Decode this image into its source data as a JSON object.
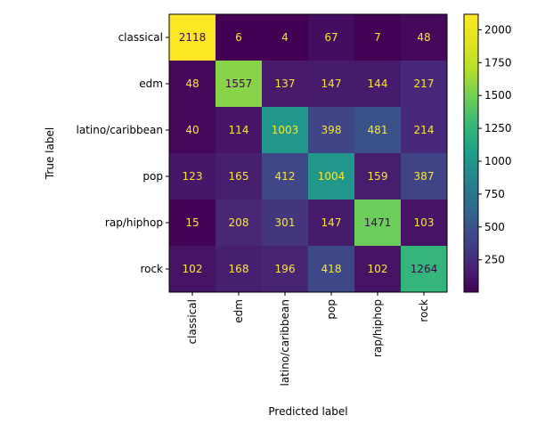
{
  "chart_data": {
    "type": "heatmap",
    "title": "",
    "xlabel": "Predicted label",
    "ylabel": "True label",
    "x_categories": [
      "classical",
      "edm",
      "latino/caribbean",
      "pop",
      "rap/hiphop",
      "rock"
    ],
    "y_categories": [
      "classical",
      "edm",
      "latino/caribbean",
      "pop",
      "rap/hiphop",
      "rock"
    ],
    "matrix": [
      [
        2118,
        6,
        4,
        67,
        7,
        48
      ],
      [
        48,
        1557,
        137,
        147,
        144,
        217
      ],
      [
        40,
        114,
        1003,
        398,
        481,
        214
      ],
      [
        123,
        165,
        412,
        1004,
        159,
        387
      ],
      [
        15,
        208,
        301,
        147,
        1471,
        103
      ],
      [
        102,
        168,
        196,
        418,
        102,
        1264
      ]
    ],
    "colormap": "viridis",
    "color_range": [
      4,
      2118
    ],
    "colorbar_ticks": [
      250,
      500,
      750,
      1000,
      1250,
      1500,
      1750,
      2000
    ],
    "dark_text_color": "#440154",
    "light_text_color": "#fde725"
  }
}
